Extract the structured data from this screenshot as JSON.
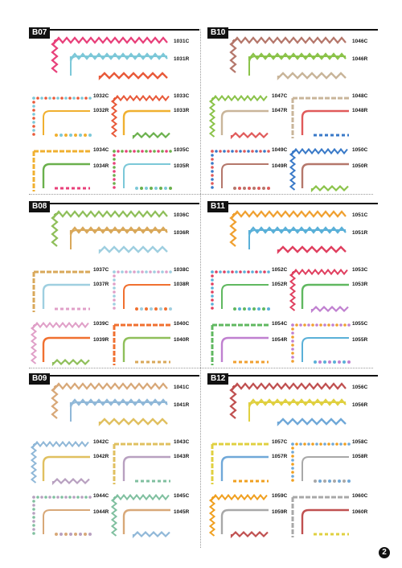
{
  "page_number": "2",
  "sections": [
    {
      "tag": "B07",
      "codes": [
        "1031C",
        "1031R",
        "1032C",
        "1032R",
        "1033C",
        "1033R",
        "1034C",
        "1034R",
        "1035C",
        "1035R"
      ]
    },
    {
      "tag": "B10",
      "codes": [
        "1046C",
        "1046R",
        "1047C",
        "1047R",
        "1048C",
        "1048R",
        "1049C",
        "1049R",
        "1050C",
        "1050R"
      ]
    },
    {
      "tag": "B08",
      "codes": [
        "1036C",
        "1036R",
        "1037C",
        "1037R",
        "1038C",
        "1038R",
        "1039C",
        "1039R",
        "1040C",
        "1040R"
      ]
    },
    {
      "tag": "B11",
      "codes": [
        "1051C",
        "1051R",
        "1052C",
        "1052R",
        "1053C",
        "1053R",
        "1054C",
        "1054R",
        "1055C",
        "1055R"
      ]
    },
    {
      "tag": "B09",
      "codes": [
        "1041C",
        "1041R",
        "1042C",
        "1042R",
        "1043C",
        "1043R",
        "1044C",
        "1044R",
        "1045C",
        "1045R"
      ]
    },
    {
      "tag": "B12",
      "codes": [
        "1056C",
        "1056R",
        "1057C",
        "1057R",
        "1058C",
        "1058R",
        "1059C",
        "1059R",
        "1060C",
        "1060R"
      ]
    }
  ]
}
